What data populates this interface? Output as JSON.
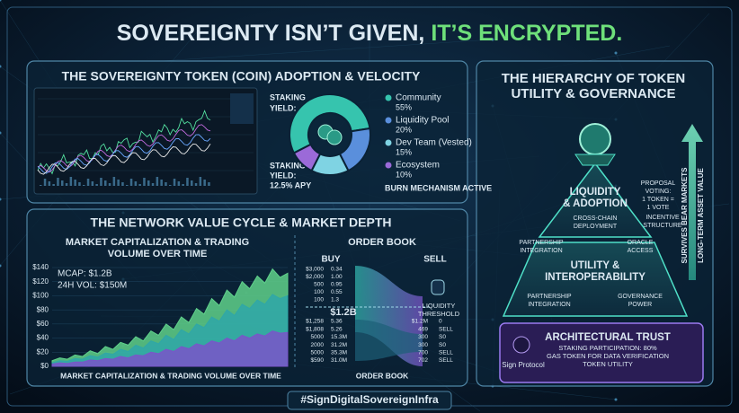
{
  "header": {
    "part1": "SOVEREIGNTY ISN’T GIVEN,",
    "part2": "IT’S ENCRYPTED."
  },
  "adoption": {
    "title": "THE SOVEREIGNTY TOKEN (COIN) ADOPTION & VELOCITY",
    "staking_top": [
      "STAKING",
      "YIELD:"
    ],
    "staking_bottom": [
      "STAKING",
      "YIELD:",
      "12.5% APY"
    ],
    "burn": "BURN MECHANISM ACTIVE",
    "allocation": {
      "type": "pie",
      "categories": [
        "Community",
        "Liquidity Pool",
        "Dev Team (Vested)",
        "Ecosystem"
      ],
      "values": [
        55,
        20,
        15,
        10
      ],
      "value_labels": [
        "55%",
        "20%",
        "15%",
        "10%"
      ],
      "colors": [
        "#36c4ae",
        "#5a8fdc",
        "#7fd3e3",
        "#9b6ad8"
      ]
    }
  },
  "network": {
    "title": "THE NETWORK VALUE CYCLE & MARKET DEPTH",
    "market": {
      "type": "area",
      "title": [
        "MARKET CAPITALIZATION & TRADING",
        "VOLUME OVER TIME"
      ],
      "mcap": "MCAP: $1.2B",
      "volume": "24H VOL: $150M",
      "caption": "MARKET CAPITALIZATION & TRADING VOLUME OVER TIME",
      "ylim": [
        0,
        140
      ],
      "yticks": [
        {
          "value": 0,
          "label": "$0"
        },
        {
          "value": 20,
          "label": "$20"
        },
        {
          "value": 40,
          "label": "$40"
        },
        {
          "value": 60,
          "label": "$60"
        },
        {
          "value": 80,
          "label": "$80"
        },
        {
          "value": 100,
          "label": "$100"
        },
        {
          "value": 120,
          "label": "$120"
        },
        {
          "value": 140,
          "label": "$140"
        }
      ],
      "series": [
        {
          "color": "#5fd08a",
          "values": [
            8,
            12,
            10,
            16,
            14,
            22,
            18,
            28,
            24,
            34,
            30,
            42,
            36,
            50,
            44,
            60,
            52,
            70,
            62,
            82,
            74,
            96,
            86,
            108,
            98,
            120,
            110,
            128,
            118,
            138,
            126,
            132
          ]
        },
        {
          "color": "#2fa7a8",
          "values": [
            5,
            8,
            7,
            11,
            10,
            15,
            13,
            19,
            17,
            24,
            21,
            30,
            26,
            36,
            32,
            44,
            38,
            52,
            46,
            60,
            55,
            70,
            64,
            80,
            72,
            88,
            82,
            94,
            88,
            102,
            96,
            100
          ]
        },
        {
          "color": "#7a55c9",
          "values": [
            3,
            5,
            4,
            6,
            6,
            9,
            8,
            11,
            10,
            14,
            12,
            16,
            15,
            20,
            18,
            24,
            21,
            28,
            25,
            32,
            29,
            36,
            33,
            40,
            36,
            44,
            40,
            46,
            43,
            50,
            47,
            48
          ]
        }
      ]
    },
    "orderbook": {
      "title": "ORDER BOOK",
      "buy": "BUY",
      "sell": "SELL",
      "buy_rows": [
        [
          "$3,000",
          "0.34"
        ],
        [
          "$2,000",
          "1.00"
        ],
        [
          "500",
          "0.95"
        ],
        [
          "100",
          "0.55"
        ],
        [
          "100",
          "1.3"
        ]
      ],
      "center": "$1.2B",
      "threshold": [
        "LIQUIDITY",
        "THRESHOLD"
      ],
      "lower_rows": [
        [
          "$1,258",
          "5.36"
        ],
        [
          "$1,808",
          "5.26"
        ],
        [
          "5000",
          "15.3M"
        ],
        [
          "2000",
          "31.2M"
        ],
        [
          "5000",
          "35.3M"
        ],
        [
          "$590",
          "31.0M"
        ]
      ],
      "sell_rows": [
        [
          "$1.2M",
          "0"
        ],
        [
          "469",
          "SELL"
        ],
        [
          "300",
          "S0"
        ],
        [
          "300",
          "S0"
        ],
        [
          "700",
          "SELL"
        ],
        [
          "702",
          "SELL"
        ]
      ],
      "caption": "ORDER BOOK"
    }
  },
  "hierarchy": {
    "title": [
      "THE HIERARCHY OF TOKEN",
      "UTILITY & GOVERNANCE"
    ],
    "top": [
      "LIQUIDITY",
      "& ADOPTION"
    ],
    "cross_chain": [
      "CROSS-CHAIN",
      "DEPLOYMENT"
    ],
    "partnership_top": [
      "PARTNERSHIP",
      "INTEGRATION"
    ],
    "oracle": [
      "ORACLE",
      "ACCESS"
    ],
    "incentive": [
      "INCENTIVE",
      "STRUCTURE"
    ],
    "proposal": [
      "PROPOSAL",
      "VOTING:",
      "1 TOKEN =",
      "1 VOTE"
    ],
    "middle": [
      "UTILITY &",
      "INTEROPERABILITY"
    ],
    "partnership_mid": [
      "PARTNERSHIP",
      "INTEGRATION"
    ],
    "governance": [
      "GOVERNANCE",
      "POWER"
    ],
    "bottom": {
      "title": "ARCHITECTURAL TRUST",
      "lines": [
        "STAKING PARTICIPATION: 80%",
        "GAS TOKEN FOR DATA VERIFICATION",
        "TOKEN UTILITY"
      ],
      "brand": "Sign Protocol"
    },
    "arrow": [
      "SURVIVES BEAR MARKETS",
      "LONG-TERM ASSET VALUE"
    ]
  },
  "footer": "#SignDigitalSovereignInfra"
}
